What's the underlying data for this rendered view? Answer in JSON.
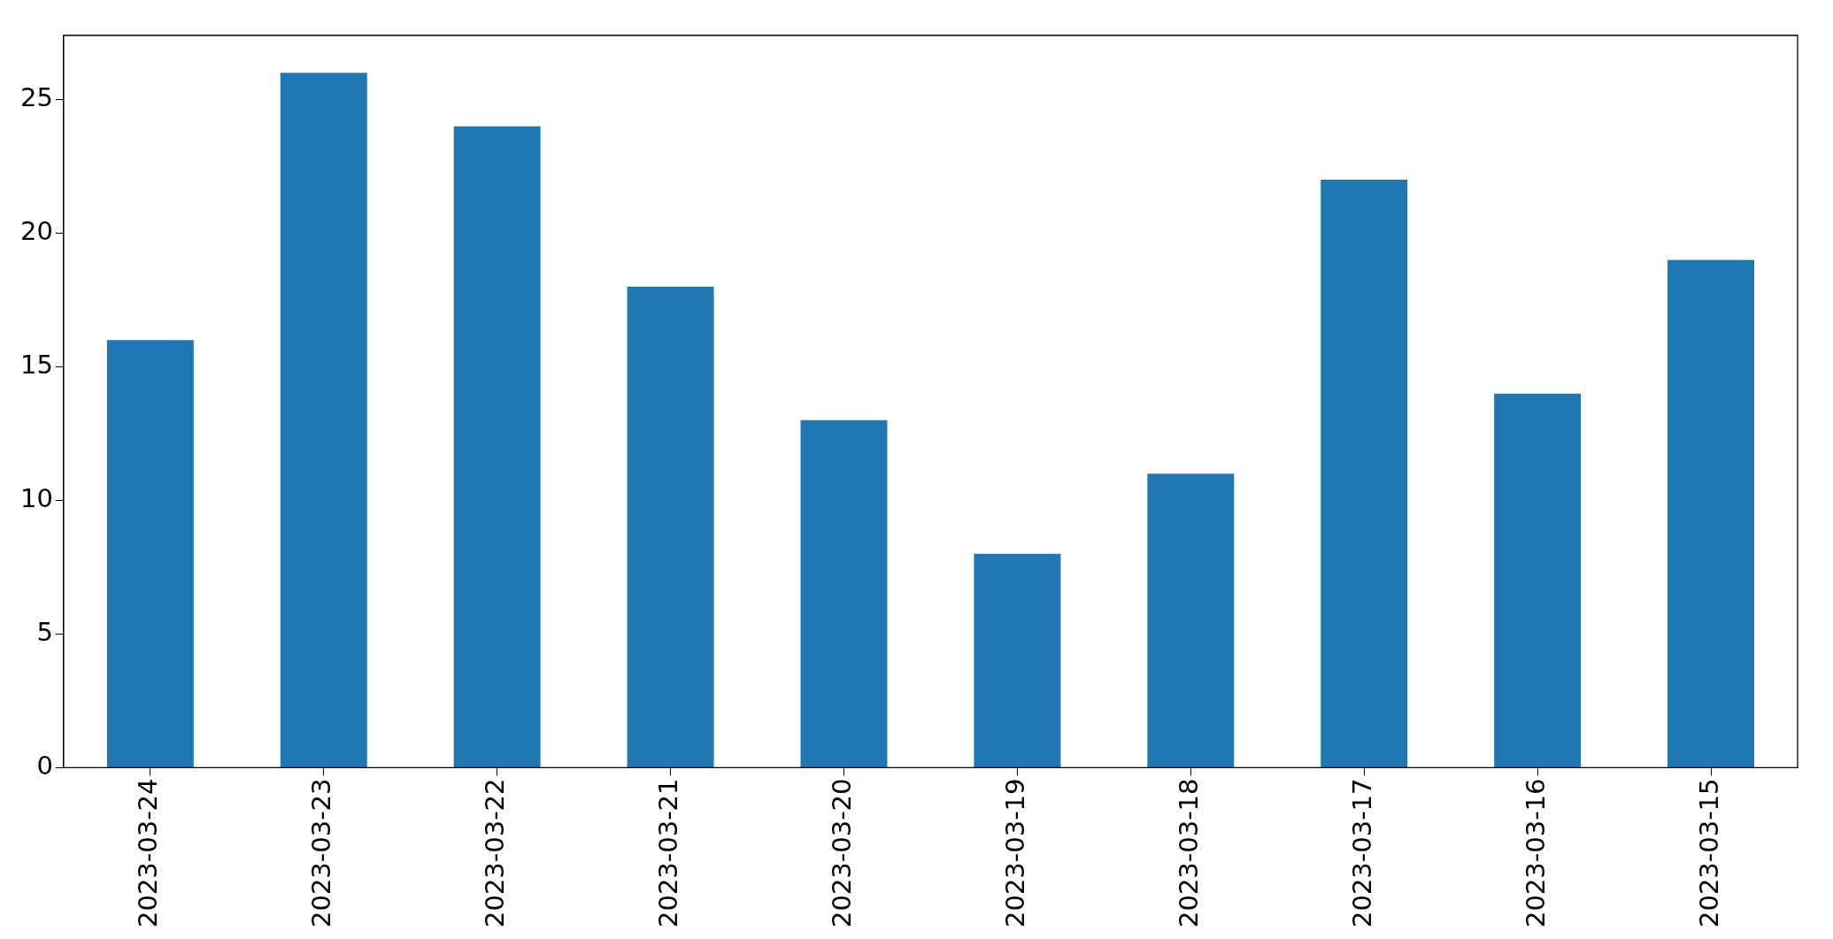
{
  "chart_data": {
    "type": "bar",
    "categories": [
      "2023-03-24",
      "2023-03-23",
      "2023-03-22",
      "2023-03-21",
      "2023-03-20",
      "2023-03-19",
      "2023-03-18",
      "2023-03-17",
      "2023-03-16",
      "2023-03-15"
    ],
    "values": [
      16,
      26,
      24,
      18,
      13,
      8,
      11,
      22,
      14,
      19
    ],
    "color": "#1f77b4",
    "ylim": [
      0,
      27.4
    ],
    "yticks": [
      0,
      5,
      10,
      15,
      20,
      25
    ],
    "grid": false
  }
}
